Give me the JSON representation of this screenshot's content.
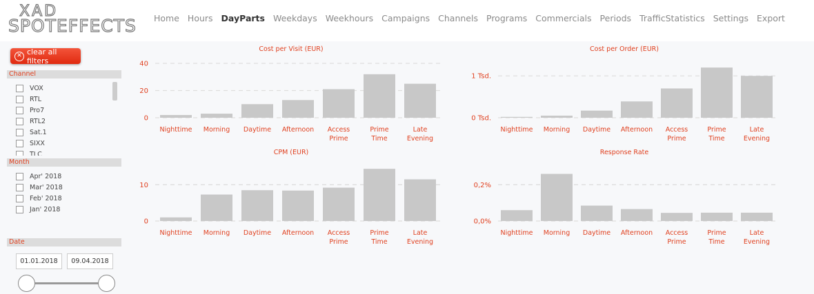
{
  "logo": {
    "line1": "XAD",
    "line2": "SPOTEFFECTS"
  },
  "nav": [
    {
      "label": "Home",
      "active": false
    },
    {
      "label": "Hours",
      "active": false
    },
    {
      "label": "DayParts",
      "active": true
    },
    {
      "label": "Weekdays",
      "active": false
    },
    {
      "label": "Weekhours",
      "active": false
    },
    {
      "label": "Campaigns",
      "active": false
    },
    {
      "label": "Channels",
      "active": false
    },
    {
      "label": "Programs",
      "active": false
    },
    {
      "label": "Commercials",
      "active": false
    },
    {
      "label": "Periods",
      "active": false
    },
    {
      "label": "TrafficStatistics",
      "active": false
    },
    {
      "label": "Settings",
      "active": false
    },
    {
      "label": "Export",
      "active": false
    }
  ],
  "sidebar": {
    "clear_label": "clear all filters",
    "channel_title": "Channel",
    "channels": [
      "VOX",
      "RTL",
      "Pro7",
      "RTL2",
      "Sat.1",
      "SIXX",
      "TLC"
    ],
    "month_title": "Month",
    "months": [
      "Apr' 2018",
      "Mar' 2018",
      "Feb' 2018",
      "Jan' 2018"
    ],
    "date_title": "Date",
    "date_from": "01.01.2018",
    "date_to": "09.04.2018"
  },
  "colors": {
    "accent": "#e0401f",
    "bar": "#c8c8c8"
  },
  "chart_data": [
    {
      "type": "bar",
      "title": "Cost per Visit (EUR)",
      "categories": [
        "Nighttime",
        "Morning",
        "Daytime",
        "Afternoon",
        "Access Prime",
        "Prime Time",
        "Late Evening"
      ],
      "values": [
        2,
        3,
        10,
        13,
        21,
        32,
        25
      ],
      "ylim": [
        0,
        40
      ],
      "yticks": [
        {
          "v": 0,
          "label": "0"
        },
        {
          "v": 20,
          "label": "20"
        },
        {
          "v": 40,
          "label": "40"
        }
      ]
    },
    {
      "type": "bar",
      "title": "Cost per Order (EUR)",
      "categories": [
        "Nighttime",
        "Morning",
        "Daytime",
        "Afternoon",
        "Access Prime",
        "Prime Time",
        "Late Evening"
      ],
      "values": [
        20,
        50,
        170,
        390,
        700,
        1200,
        1000
      ],
      "ylim": [
        0,
        1300
      ],
      "yticks": [
        {
          "v": 0,
          "label": "0 Tsd."
        },
        {
          "v": 1000,
          "label": "1 Tsd."
        }
      ]
    },
    {
      "type": "bar",
      "title": "CPM (EUR)",
      "categories": [
        "Nighttime",
        "Morning",
        "Daytime",
        "Afternoon",
        "Access Prime",
        "Prime Time",
        "Late Evening"
      ],
      "values": [
        1,
        7.3,
        8.5,
        8.4,
        9.2,
        14.4,
        11.5
      ],
      "ylim": [
        0,
        15
      ],
      "yticks": [
        {
          "v": 0,
          "label": "0"
        },
        {
          "v": 10,
          "label": "10"
        }
      ]
    },
    {
      "type": "bar",
      "title": "Response Rate",
      "categories": [
        "Nighttime",
        "Morning",
        "Daytime",
        "Afternoon",
        "Access Prime",
        "Prime Time",
        "Late Evening"
      ],
      "values": [
        0.06,
        0.26,
        0.085,
        0.066,
        0.045,
        0.046,
        0.046
      ],
      "ylim": [
        0,
        0.3
      ],
      "yticks": [
        {
          "v": 0,
          "label": "0,0%"
        },
        {
          "v": 0.2,
          "label": "0,2%"
        }
      ]
    }
  ]
}
